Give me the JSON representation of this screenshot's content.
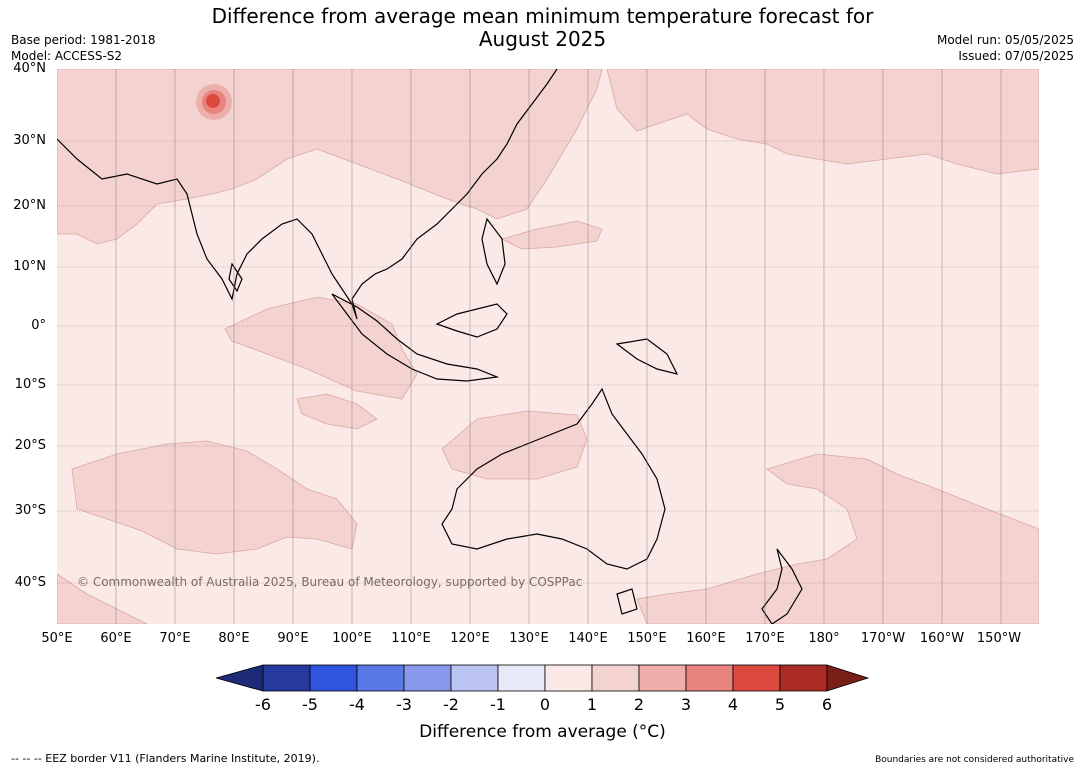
{
  "title_line1": "Difference from average mean minimum temperature forecast for",
  "title_line2": "August 2025",
  "meta_left": {
    "base_period": "Base period: 1981-2018",
    "model": "Model: ACCESS-S2"
  },
  "meta_right": {
    "model_run": "Model run: 05/05/2025",
    "issued": "Issued: 07/05/2025"
  },
  "lat_labels": [
    "40°N",
    "30°N",
    "20°N",
    "10°N",
    "0°",
    "10°S",
    "20°S",
    "30°S",
    "40°S"
  ],
  "lon_labels": [
    "50°E",
    "60°E",
    "70°E",
    "80°E",
    "90°E",
    "100°E",
    "110°E",
    "120°E",
    "130°E",
    "140°E",
    "150°E",
    "160°E",
    "170°E",
    "180°",
    "170°W",
    "160°W",
    "150°W"
  ],
  "copyright": "© Commonwealth of Australia 2025, Bureau of Meteorology, supported by COSPPac",
  "colorbar": {
    "ticks": [
      "-6",
      "-5",
      "-4",
      "-3",
      "-2",
      "-1",
      "0",
      "1",
      "2",
      "3",
      "4",
      "5",
      "6"
    ],
    "colors": [
      "#263a9e",
      "#3154e0",
      "#5a78e6",
      "#8899ec",
      "#bcc4f3",
      "#e8eafa",
      "#fbe9e7",
      "#f4d2d0",
      "#eeafab",
      "#e88480",
      "#dc4a3e",
      "#ac2b25"
    ],
    "under_color": "#1d2a78",
    "over_color": "#7a1e18",
    "label": "Difference from average (°C)"
  },
  "footer_left": "--  --  -- EEZ border V11 (Flanders Marine Institute, 2019).",
  "footer_right": "Boundaries are not considered authoritative"
}
